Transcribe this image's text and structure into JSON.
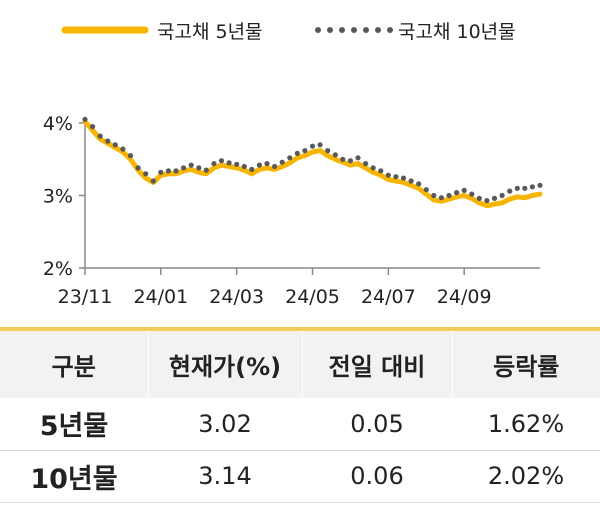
{
  "chart_data": {
    "type": "line",
    "x_labels": [
      "23/11",
      "24/01",
      "24/03",
      "24/05",
      "24/07",
      "24/09"
    ],
    "y_ticks": [
      "2%",
      "3%",
      "4%"
    ],
    "ylim": [
      2,
      4.3
    ],
    "x_range": [
      "2023-11",
      "2024-11"
    ],
    "series": [
      {
        "name": "국고채 5년물",
        "style": "line",
        "color": "#f7b500",
        "values": [
          4.02,
          3.9,
          3.78,
          3.72,
          3.66,
          3.6,
          3.5,
          3.35,
          3.24,
          3.18,
          3.28,
          3.3,
          3.3,
          3.34,
          3.36,
          3.32,
          3.3,
          3.38,
          3.42,
          3.4,
          3.38,
          3.35,
          3.3,
          3.36,
          3.38,
          3.36,
          3.4,
          3.45,
          3.52,
          3.55,
          3.6,
          3.62,
          3.55,
          3.5,
          3.46,
          3.42,
          3.44,
          3.38,
          3.32,
          3.28,
          3.22,
          3.2,
          3.18,
          3.14,
          3.1,
          3.02,
          2.94,
          2.92,
          2.95,
          2.98,
          3.0,
          2.96,
          2.9,
          2.86,
          2.88,
          2.9,
          2.95,
          2.98,
          2.97,
          3.0,
          3.02
        ]
      },
      {
        "name": "국고채 10년물",
        "style": "dots",
        "color": "#595959",
        "values": [
          4.05,
          3.95,
          3.82,
          3.75,
          3.7,
          3.64,
          3.55,
          3.38,
          3.3,
          3.2,
          3.32,
          3.34,
          3.34,
          3.38,
          3.42,
          3.38,
          3.35,
          3.44,
          3.48,
          3.45,
          3.43,
          3.4,
          3.36,
          3.42,
          3.44,
          3.4,
          3.46,
          3.52,
          3.58,
          3.62,
          3.68,
          3.7,
          3.62,
          3.56,
          3.5,
          3.48,
          3.52,
          3.44,
          3.38,
          3.34,
          3.28,
          3.26,
          3.24,
          3.2,
          3.16,
          3.08,
          3.0,
          2.97,
          3.0,
          3.04,
          3.07,
          3.02,
          2.96,
          2.93,
          2.96,
          3.0,
          3.06,
          3.1,
          3.1,
          3.12,
          3.14
        ]
      }
    ],
    "grid": false
  },
  "table": {
    "headers": [
      "구분",
      "현재가(%)",
      "전일 대비",
      "등락률"
    ],
    "rows": [
      [
        "5년물",
        "3.02",
        "0.05",
        "1.62%"
      ],
      [
        "10년물",
        "3.14",
        "0.06",
        "2.02%"
      ]
    ]
  }
}
